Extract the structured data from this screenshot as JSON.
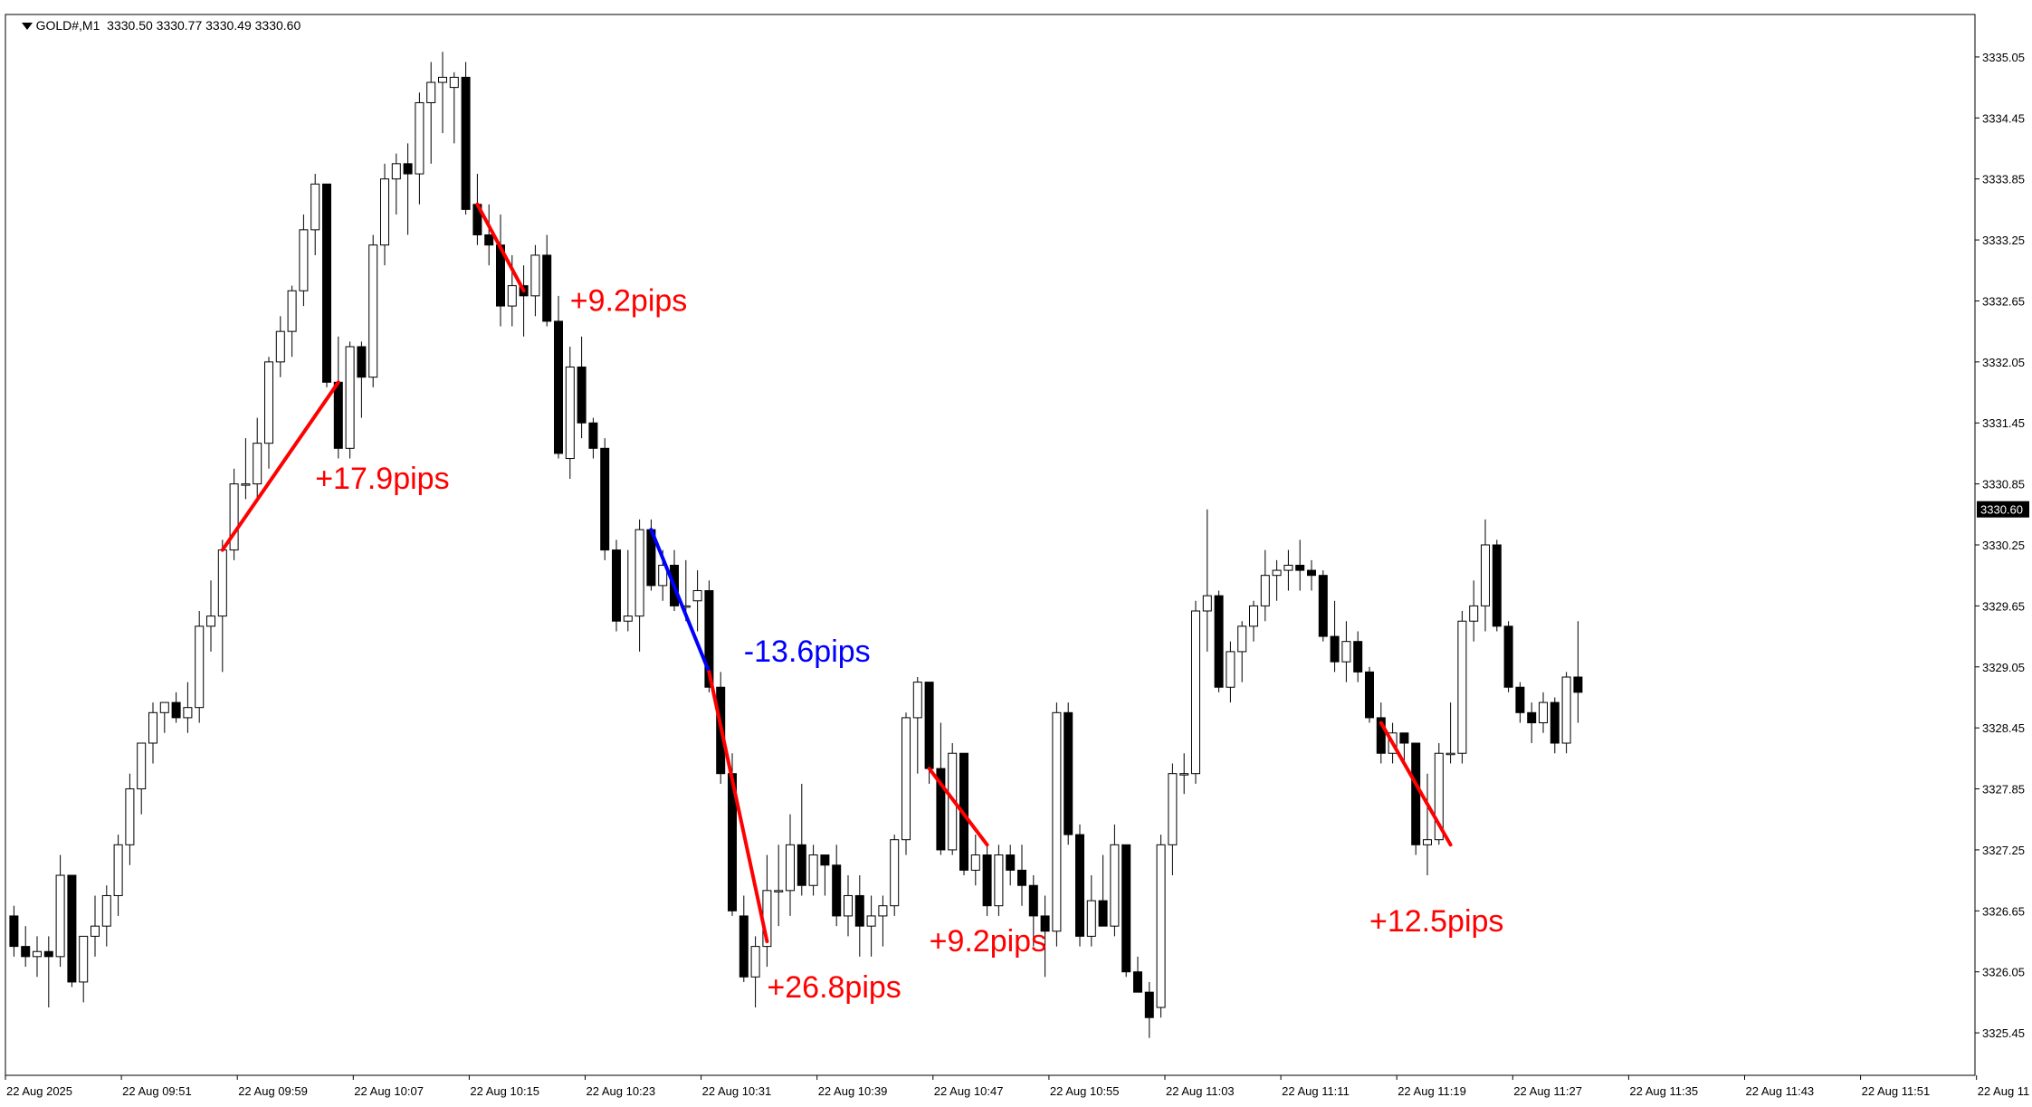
{
  "header": {
    "symbol": "GOLD#,M1",
    "ohlc": "3330.50 3330.77 3330.49 3330.60"
  },
  "colors": {
    "background": "#ffffff",
    "bull_body": "#ffffff",
    "bear_body": "#000000",
    "red_line": "#ff0000",
    "blue_line": "#0000ff",
    "price_tag_bg": "#000000"
  },
  "price_scale": {
    "labels": [
      "3335.05",
      "3334.45",
      "3333.85",
      "3333.25",
      "3332.65",
      "3332.05",
      "3331.45",
      "3330.85",
      "3330.25",
      "3329.65",
      "3329.05",
      "3328.45",
      "3327.85",
      "3327.25",
      "3326.65",
      "3326.05",
      "3325.45"
    ],
    "current_price": "3330.60"
  },
  "time_axis": {
    "labels": [
      "22 Aug 2025",
      "22 Aug 09:51",
      "22 Aug 09:59",
      "22 Aug 10:07",
      "22 Aug 10:15",
      "22 Aug 10:23",
      "22 Aug 10:31",
      "22 Aug 10:39",
      "22 Aug 10:47",
      "22 Aug 10:55",
      "22 Aug 11:03",
      "22 Aug 11:11",
      "22 Aug 11:19",
      "22 Aug 11:27",
      "22 Aug 11:35",
      "22 Aug 11:43",
      "22 Aug 11:51",
      "22 Aug 11"
    ]
  },
  "annotations": [
    {
      "text": "+17.9pips",
      "color": "#ff0000",
      "from": {
        "bar": 18,
        "price": 3330.2
      },
      "to": {
        "bar": 28,
        "price": 3331.85
      },
      "label": {
        "bar": 26,
        "price": 3330.8
      }
    },
    {
      "text": "+9.2pips",
      "color": "#ff0000",
      "from": {
        "bar": 40,
        "price": 3333.6
      },
      "to": {
        "bar": 44,
        "price": 3332.75
      },
      "label": {
        "bar": 48,
        "price": 3332.55
      }
    },
    {
      "text": "-13.6pips",
      "color": "#0000ff",
      "from": {
        "bar": 55,
        "price": 3330.4
      },
      "to": {
        "bar": 60,
        "price": 3329.0
      },
      "label": {
        "bar": 63,
        "price": 3329.1
      }
    },
    {
      "text": "+26.8pips",
      "color": "#ff0000",
      "from": {
        "bar": 60,
        "price": 3329.0
      },
      "to": {
        "bar": 65,
        "price": 3326.35
      },
      "label": {
        "bar": 65,
        "price": 3325.8
      }
    },
    {
      "text": "+9.2pips",
      "color": "#ff0000",
      "from": {
        "bar": 79,
        "price": 3328.05
      },
      "to": {
        "bar": 84,
        "price": 3327.3
      },
      "label": {
        "bar": 79,
        "price": 3326.25
      }
    },
    {
      "text": "+12.5pips",
      "color": "#ff0000",
      "from": {
        "bar": 118,
        "price": 3328.5
      },
      "to": {
        "bar": 124,
        "price": 3327.3
      },
      "label": {
        "bar": 117,
        "price": 3326.45
      }
    }
  ],
  "chart_data": {
    "type": "candlestick",
    "symbol": "GOLD#",
    "timeframe": "M1",
    "ylim": [
      3325.05,
      3335.45
    ],
    "ylabel": "",
    "xlabel": "",
    "grid": false,
    "candles": [
      [
        3326.6,
        3326.7,
        3326.2,
        3326.3
      ],
      [
        3326.3,
        3326.5,
        3326.1,
        3326.2
      ],
      [
        3326.2,
        3326.4,
        3326.0,
        3326.25
      ],
      [
        3326.25,
        3326.4,
        3325.7,
        3326.2
      ],
      [
        3326.2,
        3327.2,
        3326.1,
        3327.0
      ],
      [
        3327.0,
        3327.0,
        3325.9,
        3325.95
      ],
      [
        3325.95,
        3326.3,
        3325.75,
        3326.4
      ],
      [
        3326.4,
        3326.8,
        3326.2,
        3326.5
      ],
      [
        3326.5,
        3326.9,
        3326.3,
        3326.8
      ],
      [
        3326.8,
        3327.4,
        3326.6,
        3327.3
      ],
      [
        3327.3,
        3328.0,
        3327.1,
        3327.85
      ],
      [
        3327.85,
        3328.3,
        3327.6,
        3328.3
      ],
      [
        3328.3,
        3328.7,
        3328.1,
        3328.6
      ],
      [
        3328.6,
        3328.7,
        3328.4,
        3328.7
      ],
      [
        3328.7,
        3328.8,
        3328.5,
        3328.55
      ],
      [
        3328.55,
        3328.9,
        3328.4,
        3328.65
      ],
      [
        3328.65,
        3329.6,
        3328.5,
        3329.45
      ],
      [
        3329.45,
        3329.9,
        3329.2,
        3329.55
      ],
      [
        3329.55,
        3330.3,
        3329.0,
        3330.2
      ],
      [
        3330.2,
        3331.0,
        3330.1,
        3330.85
      ],
      [
        3330.85,
        3331.3,
        3330.7,
        3330.85
      ],
      [
        3330.85,
        3331.5,
        3330.7,
        3331.25
      ],
      [
        3331.25,
        3332.1,
        3331.0,
        3332.05
      ],
      [
        3332.05,
        3332.5,
        3331.9,
        3332.35
      ],
      [
        3332.35,
        3332.8,
        3332.1,
        3332.75
      ],
      [
        3332.75,
        3333.5,
        3332.6,
        3333.35
      ],
      [
        3333.35,
        3333.9,
        3333.1,
        3333.8
      ],
      [
        3333.8,
        3333.8,
        3331.8,
        3331.85
      ],
      [
        3331.85,
        3332.3,
        3331.1,
        3331.2
      ],
      [
        3331.2,
        3332.25,
        3331.1,
        3332.2
      ],
      [
        3332.2,
        3332.25,
        3331.5,
        3331.9
      ],
      [
        3331.9,
        3333.3,
        3331.8,
        3333.2
      ],
      [
        3333.2,
        3334.0,
        3333.0,
        3333.85
      ],
      [
        3333.85,
        3334.1,
        3333.5,
        3334.0
      ],
      [
        3334.0,
        3334.2,
        3333.3,
        3333.9
      ],
      [
        3333.9,
        3334.7,
        3333.6,
        3334.6
      ],
      [
        3334.6,
        3335.0,
        3334.0,
        3334.8
      ],
      [
        3334.8,
        3335.1,
        3334.3,
        3334.85
      ],
      [
        3334.75,
        3334.9,
        3334.2,
        3334.85
      ],
      [
        3334.85,
        3335.0,
        3333.5,
        3333.55
      ],
      [
        3333.6,
        3333.9,
        3333.2,
        3333.3
      ],
      [
        3333.3,
        3333.6,
        3333.0,
        3333.2
      ],
      [
        3333.2,
        3333.5,
        3332.4,
        3332.6
      ],
      [
        3332.6,
        3333.1,
        3332.4,
        3332.8
      ],
      [
        3332.8,
        3333.0,
        3332.3,
        3332.7
      ],
      [
        3332.7,
        3333.2,
        3332.5,
        3333.1
      ],
      [
        3333.1,
        3333.3,
        3332.4,
        3332.45
      ],
      [
        3332.45,
        3332.7,
        3331.1,
        3331.15
      ],
      [
        3331.1,
        3332.2,
        3330.9,
        3332.0
      ],
      [
        3332.0,
        3332.3,
        3331.3,
        3331.45
      ],
      [
        3331.45,
        3331.5,
        3331.1,
        3331.2
      ],
      [
        3331.2,
        3331.3,
        3330.1,
        3330.2
      ],
      [
        3330.2,
        3330.3,
        3329.4,
        3329.5
      ],
      [
        3329.5,
        3330.2,
        3329.4,
        3329.55
      ],
      [
        3329.55,
        3330.5,
        3329.2,
        3330.4
      ],
      [
        3330.4,
        3330.5,
        3329.8,
        3329.85
      ],
      [
        3329.85,
        3330.2,
        3329.7,
        3330.05
      ],
      [
        3330.05,
        3330.2,
        3329.6,
        3329.65
      ],
      [
        3329.65,
        3330.1,
        3329.5,
        3329.65
      ],
      [
        3329.7,
        3330.0,
        3329.4,
        3329.8
      ],
      [
        3329.8,
        3329.9,
        3328.8,
        3328.85
      ],
      [
        3328.85,
        3329.0,
        3327.9,
        3328.0
      ],
      [
        3328.0,
        3328.2,
        3326.6,
        3326.65
      ],
      [
        3326.6,
        3326.8,
        3325.95,
        3326.0
      ],
      [
        3326.0,
        3326.4,
        3325.7,
        3326.3
      ],
      [
        3326.3,
        3327.2,
        3326.1,
        3326.85
      ],
      [
        3326.85,
        3327.3,
        3326.5,
        3326.85
      ],
      [
        3326.85,
        3327.6,
        3326.6,
        3327.3
      ],
      [
        3327.3,
        3327.9,
        3326.8,
        3326.9
      ],
      [
        3326.9,
        3327.3,
        3326.8,
        3327.2
      ],
      [
        3327.2,
        3327.2,
        3326.8,
        3327.1
      ],
      [
        3327.1,
        3327.3,
        3326.5,
        3326.6
      ],
      [
        3326.6,
        3327.0,
        3326.4,
        3326.8
      ],
      [
        3326.8,
        3327.0,
        3326.2,
        3326.5
      ],
      [
        3326.5,
        3326.8,
        3326.2,
        3326.6
      ],
      [
        3326.6,
        3326.8,
        3326.3,
        3326.7
      ],
      [
        3326.7,
        3327.4,
        3326.6,
        3327.35
      ],
      [
        3327.35,
        3328.6,
        3327.2,
        3328.55
      ],
      [
        3328.55,
        3328.95,
        3328.0,
        3328.9
      ],
      [
        3328.9,
        3328.9,
        3327.9,
        3328.05
      ],
      [
        3328.05,
        3328.5,
        3327.2,
        3327.25
      ],
      [
        3327.25,
        3328.3,
        3327.2,
        3328.2
      ],
      [
        3328.2,
        3328.2,
        3327.0,
        3327.05
      ],
      [
        3327.05,
        3327.4,
        3326.9,
        3327.2
      ],
      [
        3327.2,
        3327.3,
        3326.6,
        3326.7
      ],
      [
        3326.7,
        3327.3,
        3326.6,
        3327.2
      ],
      [
        3327.2,
        3327.3,
        3326.9,
        3327.05
      ],
      [
        3327.05,
        3327.3,
        3326.7,
        3326.9
      ],
      [
        3326.9,
        3327.0,
        3326.3,
        3326.6
      ],
      [
        3326.6,
        3326.8,
        3326.0,
        3326.45
      ],
      [
        3326.45,
        3328.7,
        3326.3,
        3328.6
      ],
      [
        3328.6,
        3328.7,
        3327.3,
        3327.4
      ],
      [
        3327.4,
        3327.5,
        3326.3,
        3326.4
      ],
      [
        3326.4,
        3327.0,
        3326.3,
        3326.75
      ],
      [
        3326.75,
        3327.2,
        3326.5,
        3326.5
      ],
      [
        3326.5,
        3327.5,
        3326.4,
        3327.3
      ],
      [
        3327.3,
        3327.3,
        3326.0,
        3326.05
      ],
      [
        3326.05,
        3326.2,
        3325.9,
        3325.85
      ],
      [
        3325.85,
        3325.95,
        3325.4,
        3325.6
      ],
      [
        3325.7,
        3327.4,
        3325.6,
        3327.3
      ],
      [
        3327.3,
        3328.1,
        3327.0,
        3328.0
      ],
      [
        3328.0,
        3328.2,
        3327.8,
        3328.0
      ],
      [
        3328.0,
        3329.7,
        3327.9,
        3329.6
      ],
      [
        3329.6,
        3330.6,
        3329.2,
        3329.75
      ],
      [
        3329.75,
        3329.8,
        3328.8,
        3328.85
      ],
      [
        3328.85,
        3329.3,
        3328.7,
        3329.2
      ],
      [
        3329.2,
        3329.5,
        3328.9,
        3329.45
      ],
      [
        3329.45,
        3329.7,
        3329.3,
        3329.65
      ],
      [
        3329.65,
        3330.2,
        3329.5,
        3329.95
      ],
      [
        3329.95,
        3330.1,
        3329.7,
        3330.0
      ],
      [
        3330.0,
        3330.2,
        3329.8,
        3330.05
      ],
      [
        3330.05,
        3330.3,
        3329.8,
        3330.0
      ],
      [
        3330.0,
        3330.1,
        3329.8,
        3329.95
      ],
      [
        3329.95,
        3330.0,
        3329.3,
        3329.35
      ],
      [
        3329.35,
        3329.7,
        3329.0,
        3329.1
      ],
      [
        3329.1,
        3329.5,
        3328.9,
        3329.3
      ],
      [
        3329.3,
        3329.4,
        3328.9,
        3329.0
      ],
      [
        3329.0,
        3329.05,
        3328.5,
        3328.55
      ],
      [
        3328.55,
        3328.7,
        3328.1,
        3328.2
      ],
      [
        3328.2,
        3328.5,
        3328.1,
        3328.4
      ],
      [
        3328.4,
        3328.4,
        3328.1,
        3328.3
      ],
      [
        3328.3,
        3328.3,
        3327.2,
        3327.3
      ],
      [
        3327.3,
        3328.0,
        3327.0,
        3327.35
      ],
      [
        3327.35,
        3328.3,
        3327.3,
        3328.2
      ],
      [
        3328.2,
        3328.7,
        3328.1,
        3328.2
      ],
      [
        3328.2,
        3329.6,
        3328.1,
        3329.5
      ],
      [
        3329.5,
        3329.9,
        3329.3,
        3329.65
      ],
      [
        3329.65,
        3330.5,
        3329.4,
        3330.25
      ],
      [
        3330.25,
        3330.3,
        3329.4,
        3329.45
      ],
      [
        3329.45,
        3329.5,
        3328.8,
        3328.85
      ],
      [
        3328.85,
        3328.9,
        3328.5,
        3328.6
      ],
      [
        3328.6,
        3328.7,
        3328.3,
        3328.5
      ],
      [
        3328.5,
        3328.8,
        3328.4,
        3328.7
      ],
      [
        3328.7,
        3328.75,
        3328.2,
        3328.3
      ],
      [
        3328.3,
        3329.0,
        3328.2,
        3328.95
      ],
      [
        3328.95,
        3329.5,
        3328.5,
        3328.8
      ]
    ]
  }
}
